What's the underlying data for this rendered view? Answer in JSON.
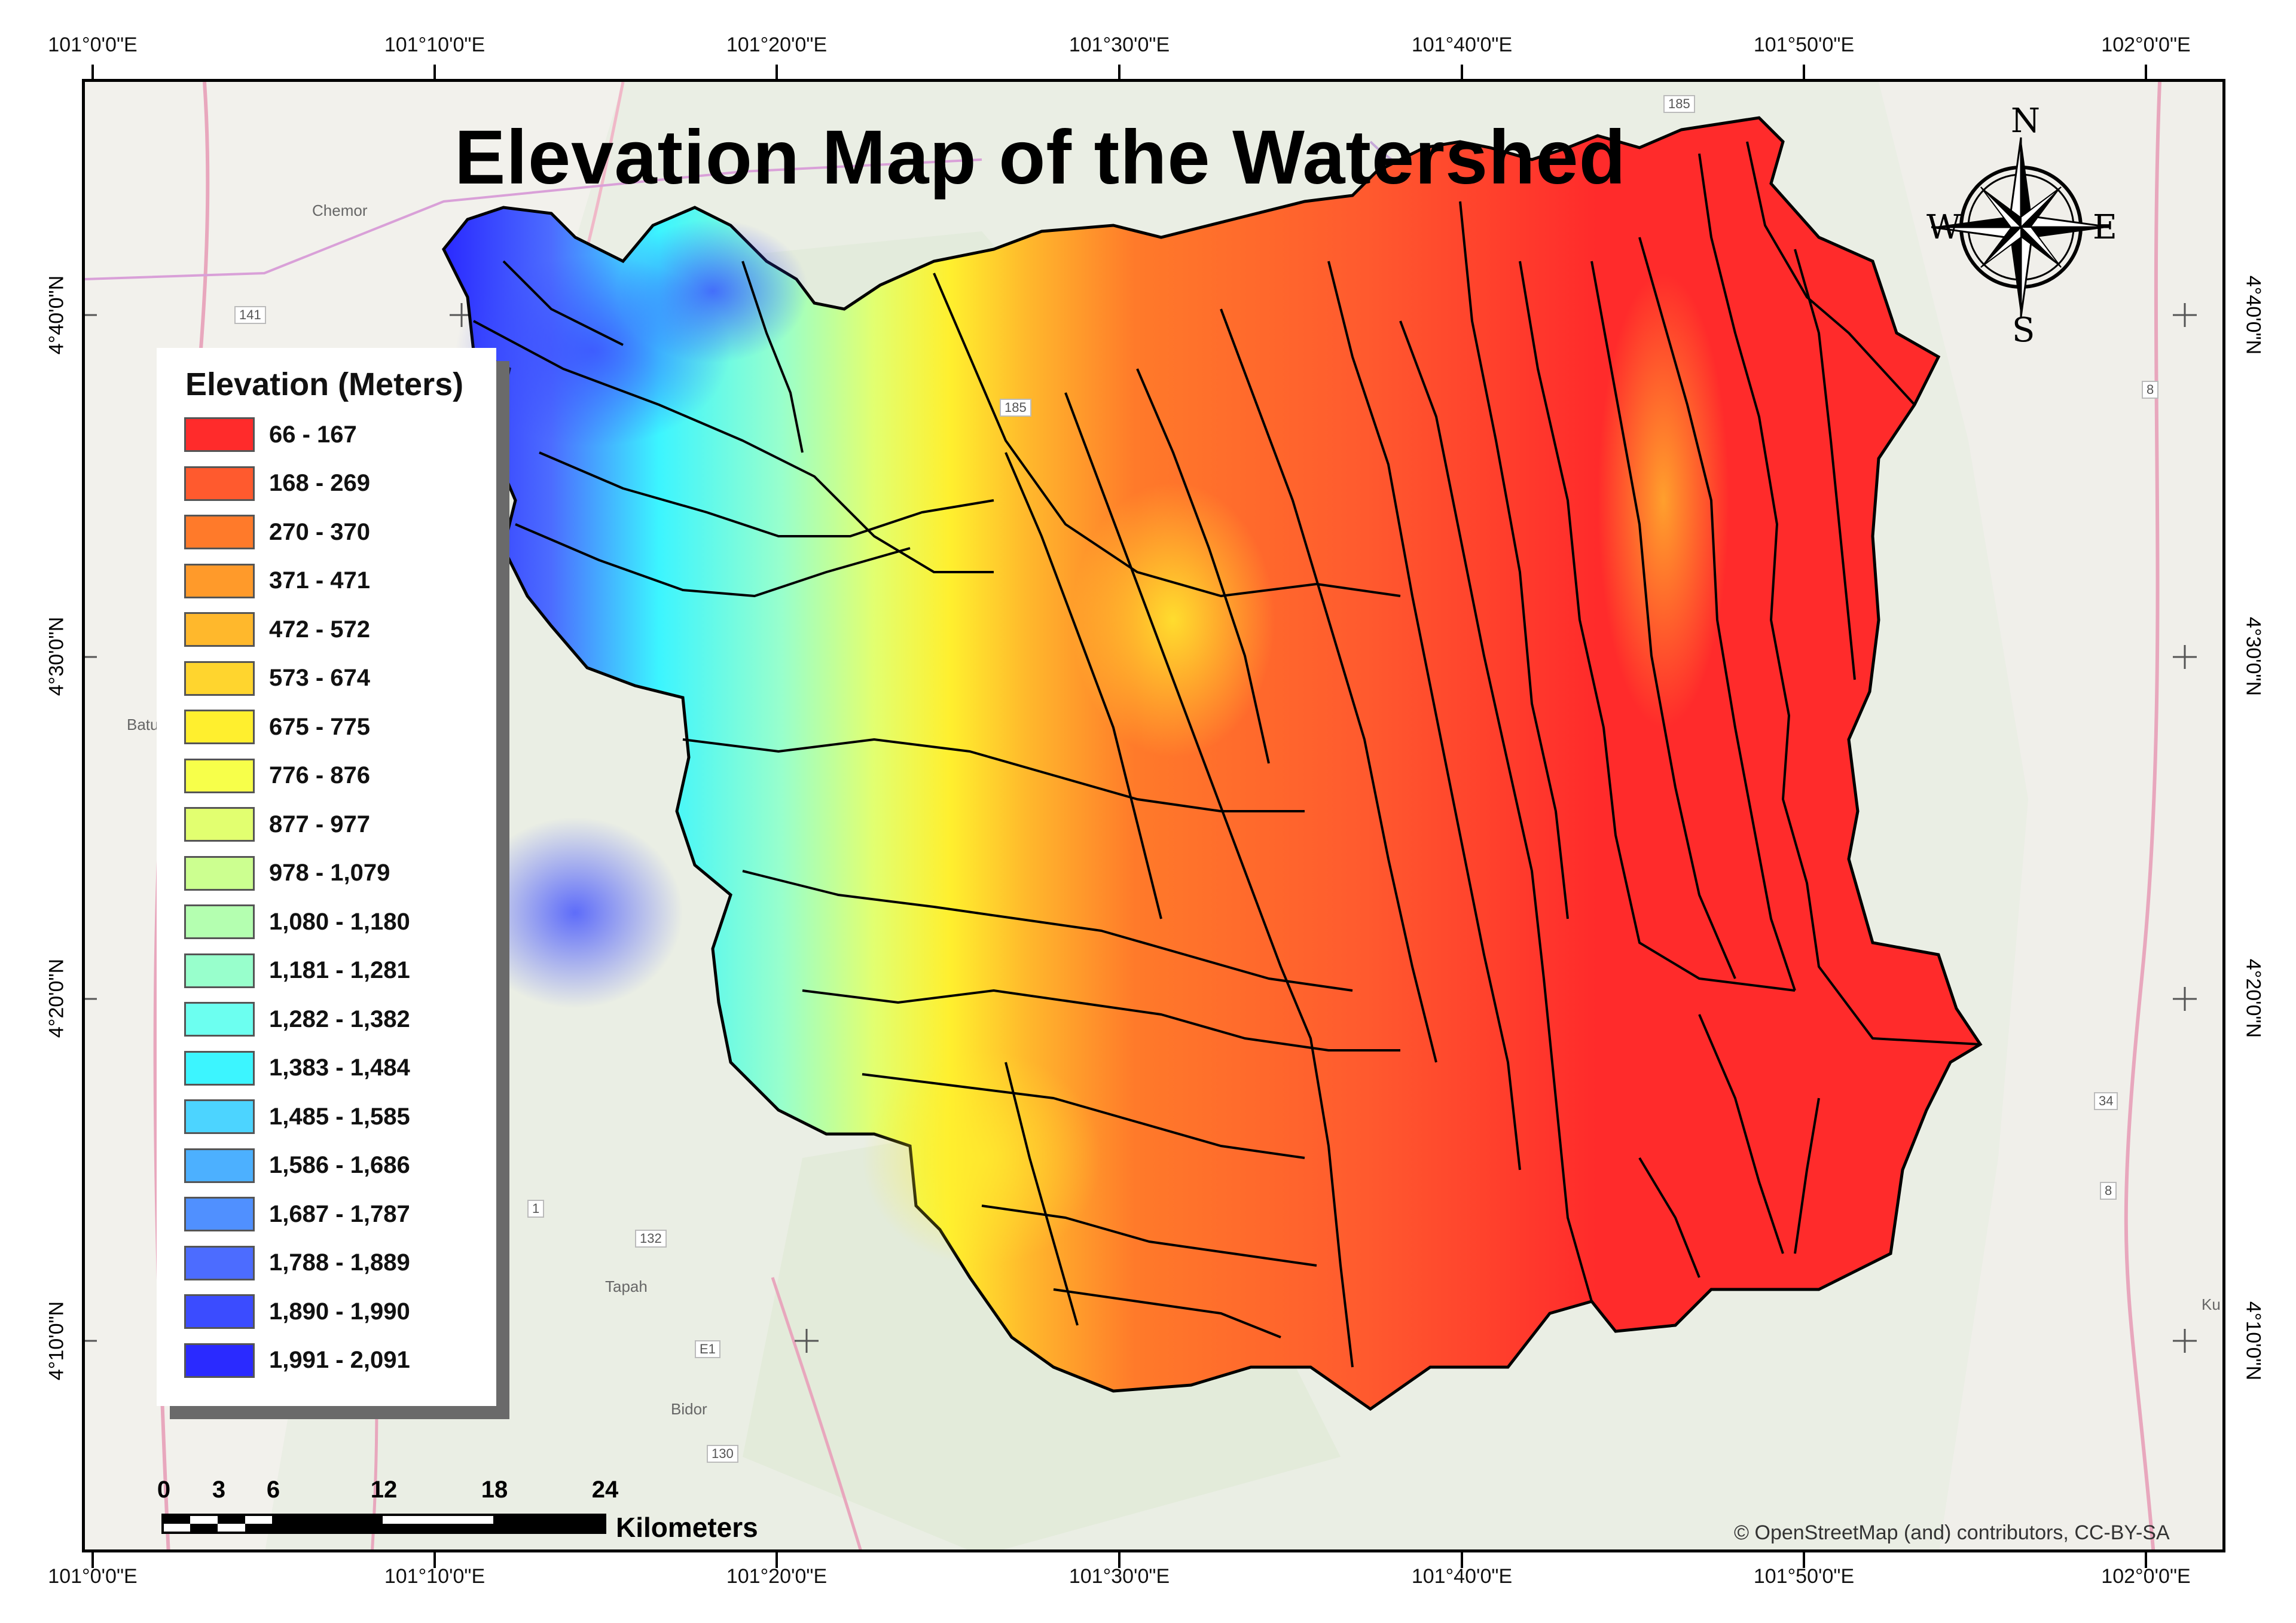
{
  "title": "Elevation Map of the Watershed",
  "legend": {
    "title": "Elevation (Meters)",
    "classes": [
      {
        "label": "66 - 167",
        "color": "#ff2b2b"
      },
      {
        "label": "168 - 269",
        "color": "#ff5a2e"
      },
      {
        "label": "270 - 370",
        "color": "#ff7a2a"
      },
      {
        "label": "371 - 471",
        "color": "#ff9a2a"
      },
      {
        "label": "472 - 572",
        "color": "#ffb82c"
      },
      {
        "label": "573 - 674",
        "color": "#ffd52e"
      },
      {
        "label": "675 - 775",
        "color": "#ffef2e"
      },
      {
        "label": "776 - 876",
        "color": "#f7ff4a"
      },
      {
        "label": "877 - 977",
        "color": "#e2ff70"
      },
      {
        "label": "978 - 1,079",
        "color": "#ccff90"
      },
      {
        "label": "1,080 - 1,180",
        "color": "#b4ffb0"
      },
      {
        "label": "1,181 - 1,281",
        "color": "#98ffcc"
      },
      {
        "label": "1,282 - 1,382",
        "color": "#6cfff0"
      },
      {
        "label": "1,383 - 1,484",
        "color": "#3cf5ff"
      },
      {
        "label": "1,485 - 1,585",
        "color": "#4cd4ff"
      },
      {
        "label": "1,586 - 1,686",
        "color": "#4cb0ff"
      },
      {
        "label": "1,687 - 1,787",
        "color": "#5090ff"
      },
      {
        "label": "1,788 - 1,889",
        "color": "#4c6cff"
      },
      {
        "label": "1,890 - 1,990",
        "color": "#3b4cff"
      },
      {
        "label": "1,991 - 2,091",
        "color": "#2a2aff"
      }
    ]
  },
  "graticule": {
    "longitudes": [
      "101°0'0\"E",
      "101°10'0\"E",
      "101°20'0\"E",
      "101°30'0\"E",
      "101°40'0\"E",
      "101°50'0\"E",
      "102°0'0\"E"
    ],
    "latitudes": [
      "4°40'0\"N",
      "4°30'0\"N",
      "4°20'0\"N",
      "4°10'0\"N"
    ]
  },
  "scale_bar": {
    "ticks": [
      "0",
      "3",
      "6",
      "12",
      "18",
      "24"
    ],
    "unit": "Kilometers"
  },
  "compass": {
    "n": "N",
    "s": "S",
    "e": "E",
    "w": "W"
  },
  "attribution": "© OpenStreetMap (and) contributors, CC-BY-SA",
  "basemap_labels": {
    "places": [
      "Chemor",
      "Batu",
      "Tapah",
      "Bidor",
      "Ku"
    ],
    "roads": [
      "185",
      "185",
      "141",
      "1",
      "E1",
      "8",
      "34",
      "8",
      "132",
      "130"
    ]
  }
}
